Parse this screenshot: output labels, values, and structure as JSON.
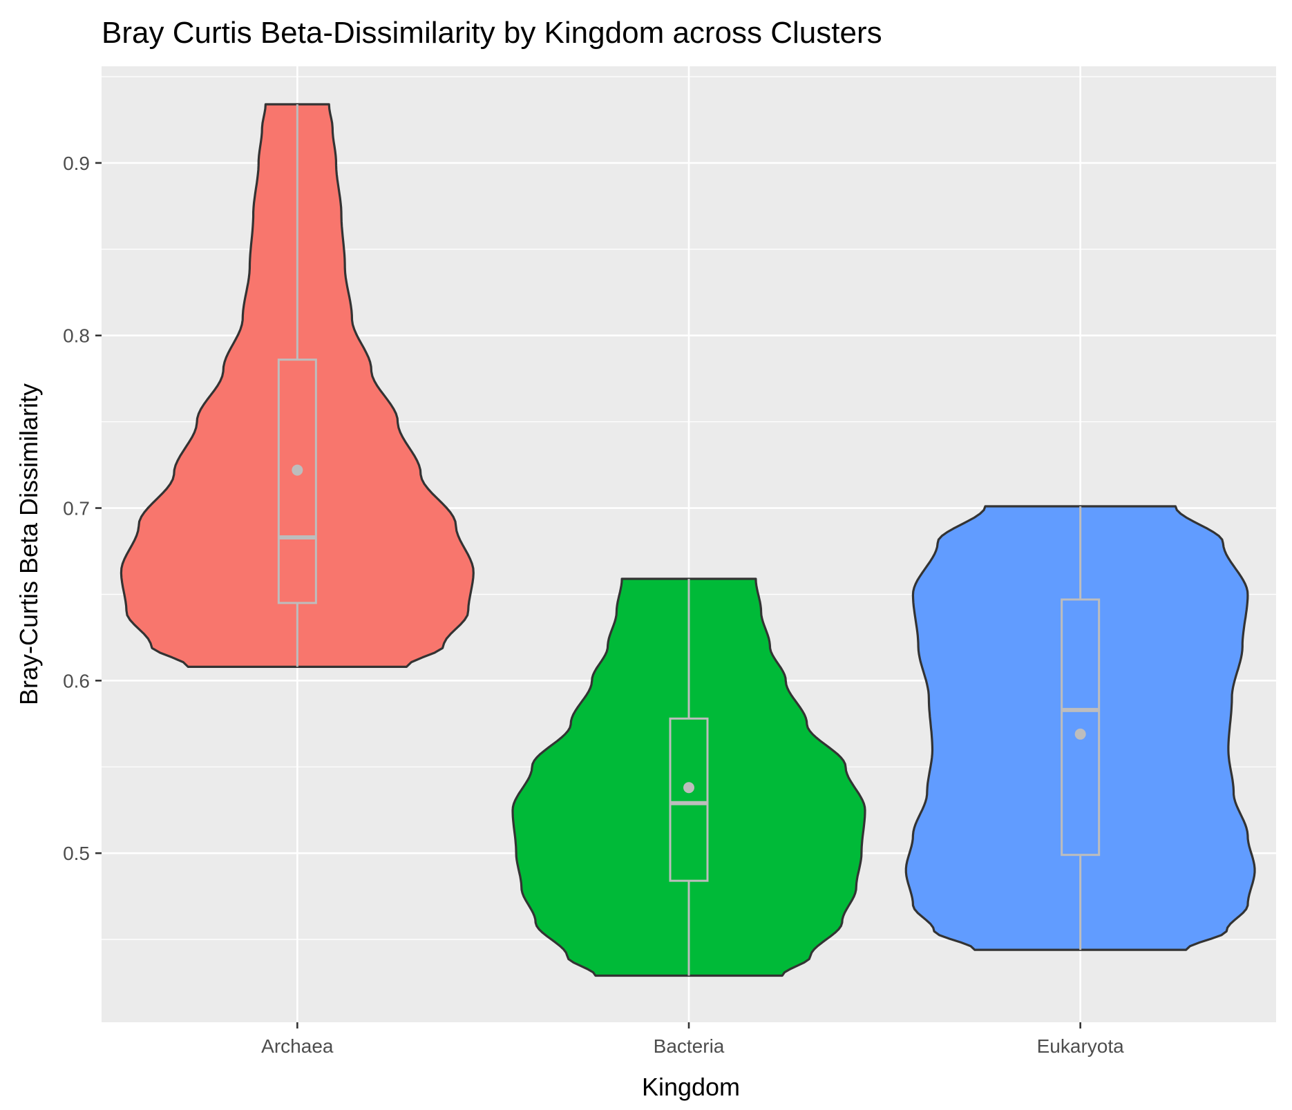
{
  "chart_data": {
    "type": "violin",
    "title": "Bray Curtis Beta-Dissimilarity by Kingdom across Clusters",
    "xlabel": "Kingdom",
    "ylabel": "Bray-Curtis Beta Dissimilarity",
    "categories": [
      "Archaea",
      "Bacteria",
      "Eukaryota"
    ],
    "yticks": [
      0.5,
      0.6,
      0.7,
      0.8,
      0.9
    ],
    "ytick_labels": [
      "0.5",
      "0.6",
      "0.7",
      "0.8",
      "0.9"
    ],
    "ylim": [
      0.402,
      0.956
    ],
    "grid": true,
    "legend": "none",
    "series": [
      {
        "category": "Archaea",
        "color": "#F8766D",
        "min": 0.608,
        "q1": 0.645,
        "median": 0.683,
        "q3": 0.786,
        "max": 0.934,
        "mean": 0.722,
        "density": [
          [
            0.608,
            0.62
          ],
          [
            0.62,
            0.83
          ],
          [
            0.64,
            0.97
          ],
          [
            0.663,
            1.0
          ],
          [
            0.69,
            0.9
          ],
          [
            0.72,
            0.7
          ],
          [
            0.75,
            0.57
          ],
          [
            0.78,
            0.42
          ],
          [
            0.81,
            0.31
          ],
          [
            0.84,
            0.27
          ],
          [
            0.87,
            0.25
          ],
          [
            0.9,
            0.22
          ],
          [
            0.92,
            0.2
          ],
          [
            0.934,
            0.18
          ]
        ]
      },
      {
        "category": "Bacteria",
        "color": "#00BA38",
        "min": 0.429,
        "q1": 0.484,
        "median": 0.529,
        "q3": 0.578,
        "max": 0.659,
        "mean": 0.538,
        "density": [
          [
            0.429,
            0.53
          ],
          [
            0.44,
            0.69
          ],
          [
            0.46,
            0.87
          ],
          [
            0.48,
            0.95
          ],
          [
            0.5,
            0.98
          ],
          [
            0.525,
            1.0
          ],
          [
            0.55,
            0.89
          ],
          [
            0.575,
            0.67
          ],
          [
            0.6,
            0.55
          ],
          [
            0.62,
            0.46
          ],
          [
            0.64,
            0.41
          ],
          [
            0.659,
            0.38
          ]
        ]
      },
      {
        "category": "Eukaryota",
        "color": "#619CFF",
        "min": 0.444,
        "q1": 0.499,
        "median": 0.583,
        "q3": 0.647,
        "max": 0.701,
        "mean": 0.569,
        "density": [
          [
            0.444,
            0.6
          ],
          [
            0.455,
            0.83
          ],
          [
            0.47,
            0.95
          ],
          [
            0.49,
            0.99
          ],
          [
            0.51,
            0.95
          ],
          [
            0.535,
            0.87
          ],
          [
            0.56,
            0.84
          ],
          [
            0.59,
            0.86
          ],
          [
            0.62,
            0.92
          ],
          [
            0.65,
            0.95
          ],
          [
            0.68,
            0.81
          ],
          [
            0.701,
            0.54
          ]
        ]
      }
    ]
  }
}
